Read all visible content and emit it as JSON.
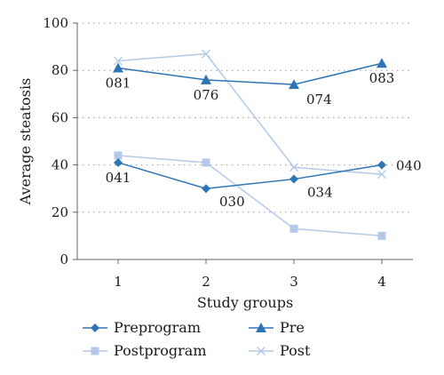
{
  "chart_data": {
    "type": "line",
    "title": "",
    "xlabel": "Study groups",
    "ylabel": "Average steatosis",
    "categories": [
      "1",
      "2",
      "3",
      "4"
    ],
    "ylim": [
      0,
      100
    ],
    "yticks": [
      "0",
      "20",
      "40",
      "60",
      "80",
      "100"
    ],
    "grid": "horizontal dotted",
    "legend_position": "bottom",
    "series": [
      {
        "name": "Preprogram",
        "values": [
          41,
          30,
          34,
          40
        ],
        "labels": [
          "041",
          "030",
          "034",
          "040"
        ],
        "color": "#2e75b6",
        "marker": "diamond"
      },
      {
        "name": "Postprogram",
        "values": [
          44,
          41,
          13,
          10
        ],
        "labels": [],
        "color": "#b4c9e8",
        "marker": "square"
      },
      {
        "name": "Pre",
        "values": [
          81,
          76,
          74,
          83
        ],
        "labels": [
          "081",
          "076",
          "074",
          "083"
        ],
        "color": "#2e75b6",
        "marker": "triangle"
      },
      {
        "name": "Post",
        "values": [
          84,
          87,
          39,
          36
        ],
        "labels": [],
        "color": "#b4c9e8",
        "marker": "x"
      }
    ]
  }
}
